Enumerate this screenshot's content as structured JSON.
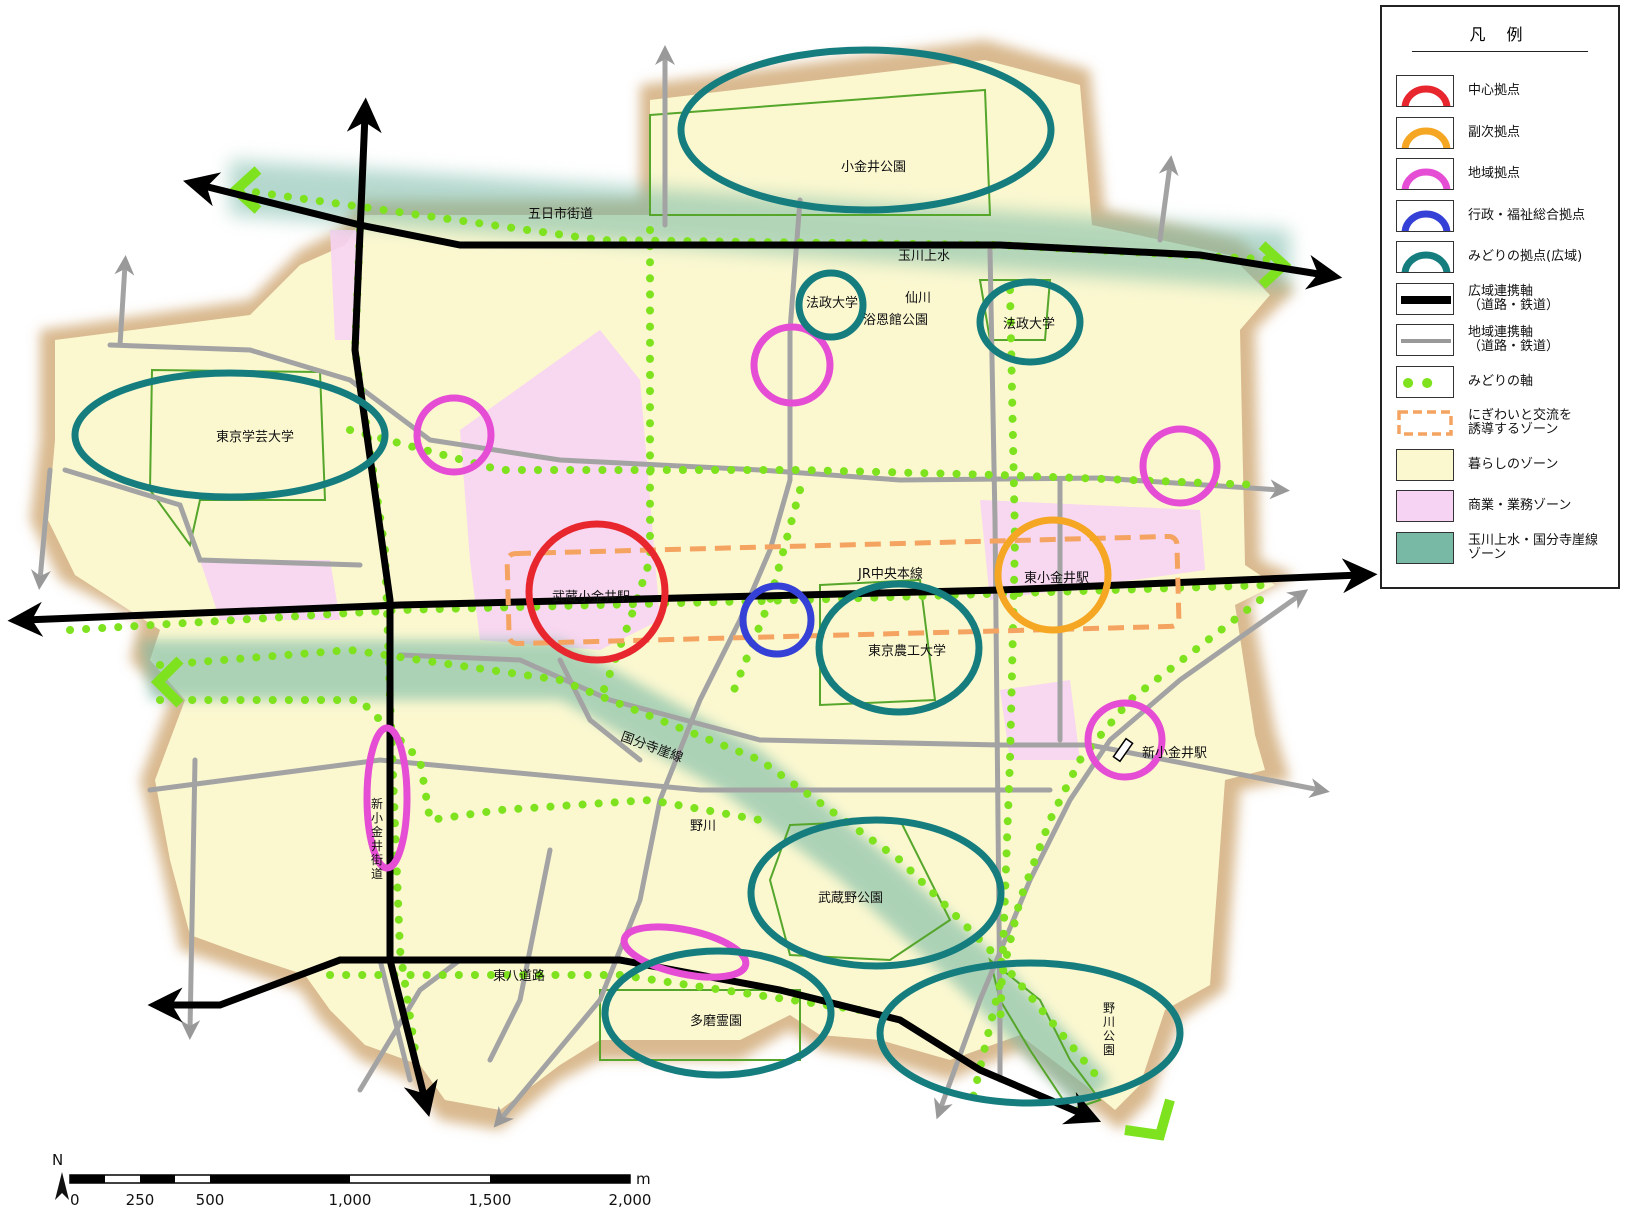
{
  "map": {
    "labels": {
      "itsukaichi": "五日市街道",
      "tamagawa": "玉川上水",
      "senkawa": "仙川",
      "yokukan": "浴恩館公園",
      "hosei1": "法政大学",
      "hosei2": "法政大学",
      "koganei_park": "小金井公園",
      "gakugei": "東京学芸大学",
      "musashi_koganei": "武蔵小金井駅",
      "jr_chuo": "JR中央本線",
      "higashi_koganei": "東小金井駅",
      "noukou": "東京農工大学",
      "kokubunji_line": "国分寺崖線",
      "shin_koganei": "新小金井駅",
      "nogawa": "野川",
      "shin_koganei_kaido": "新\n小\n金\n井\n街\n道",
      "musashino_park": "武蔵野公園",
      "higashihachi": "東八道路",
      "tama_reien": "多磨霊園",
      "nogawa_park": "野\n川\n公\n園"
    }
  },
  "legend": {
    "title": "凡 例",
    "items": [
      {
        "label": "中心拠点",
        "kind": "ring",
        "color": "#e8262e"
      },
      {
        "label": "副次拠点",
        "kind": "ring",
        "color": "#f5a623"
      },
      {
        "label": "地域拠点",
        "kind": "ring",
        "color": "#e54ed4"
      },
      {
        "label": "行政・福祉総合拠点",
        "kind": "ring",
        "color": "#3440d6"
      },
      {
        "label": "みどりの拠点(広域)",
        "kind": "ring",
        "color": "#167d7f"
      },
      {
        "label": "広域連携軸\n（道路・鉄道）",
        "kind": "thick",
        "color": "#000000"
      },
      {
        "label": "地域連携軸\n（道路・鉄道）",
        "kind": "thin",
        "color": "#999999"
      },
      {
        "label": "みどりの軸",
        "kind": "dots",
        "color": "#7ee21f"
      },
      {
        "label": "にぎわいと交流を\n誘導するゾーン",
        "kind": "dash",
        "color": "#f4a460"
      },
      {
        "label": "暮らしのゾーン",
        "kind": "fill",
        "color": "#fbf8d0"
      },
      {
        "label": "商業・業務ゾーン",
        "kind": "fill",
        "color": "#f7d3f3"
      },
      {
        "label": "玉川上水・国分寺崖線\nゾーン",
        "kind": "fill",
        "color": "#78b9a6"
      }
    ]
  },
  "scale": {
    "north": "N",
    "unit": "m",
    "ticks": [
      "0",
      "250",
      "500",
      "1,000",
      "1,500",
      "2,000"
    ]
  },
  "colors": {
    "living": "#fbf8d0",
    "commercial": "#f7d3f3",
    "shadow": "#d9b98f",
    "green_zone": "#78b9a6",
    "park_outline": "#55a62a",
    "road_gray": "#a3a3a3",
    "green_dot": "#7ee21f"
  }
}
